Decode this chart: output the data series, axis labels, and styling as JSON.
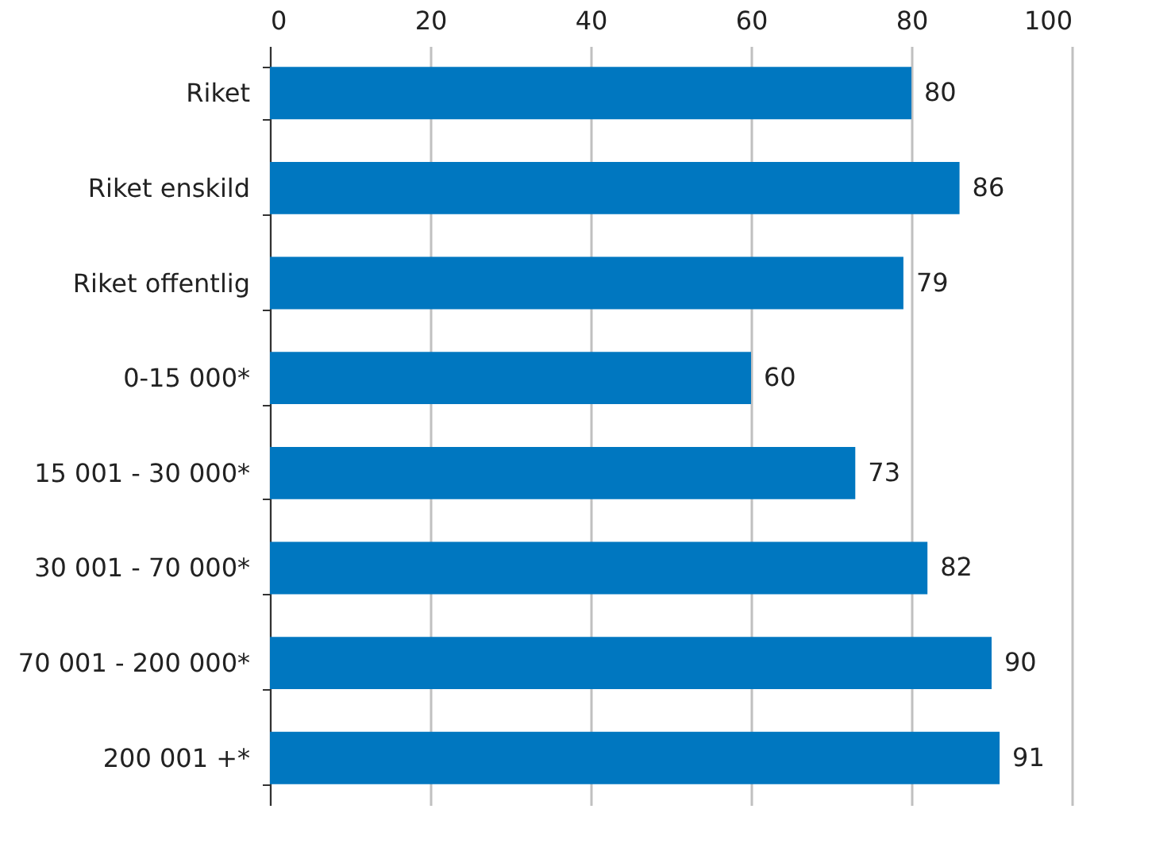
{
  "chart_data": {
    "type": "bar",
    "orientation": "horizontal",
    "categories": [
      "Riket",
      "Riket enskild",
      "Riket offentlig",
      "0-15 000*",
      "15 001 - 30 000*",
      "30 001 - 70 000*",
      "70 001 - 200 000*",
      "200 001 +*"
    ],
    "values": [
      80,
      86,
      79,
      60,
      73,
      82,
      90,
      91
    ],
    "color": "#0077c0",
    "xlim": [
      0,
      100
    ],
    "xticks": [
      0,
      20,
      40,
      60,
      80,
      100
    ],
    "grid": "x",
    "data_labels": true
  }
}
